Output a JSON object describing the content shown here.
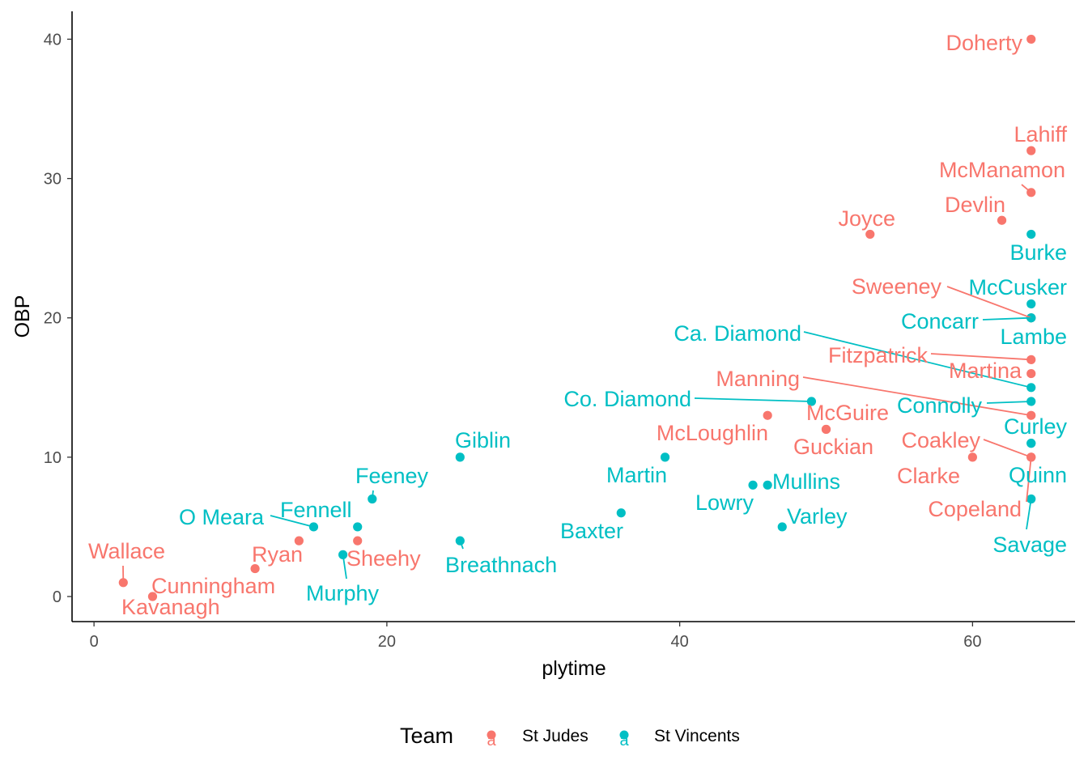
{
  "chart_data": {
    "type": "scatter",
    "xlabel": "plytime",
    "ylabel": "OBP",
    "xlim": [
      -1.5,
      67
    ],
    "ylim": [
      -1.8,
      42
    ],
    "x_ticks": [
      0,
      20,
      40,
      60
    ],
    "y_ticks": [
      0,
      10,
      20,
      30,
      40
    ],
    "grid": false,
    "legend": {
      "title": "Team",
      "placement": "bottom",
      "key_glyph": "a",
      "entries": [
        {
          "name": "St Judes",
          "color": "#F8766D"
        },
        {
          "name": "St Vincents",
          "color": "#00BFC4"
        }
      ]
    },
    "series": [
      {
        "name": "St Judes",
        "color": "#F8766D",
        "points": [
          {
            "label": "Doherty",
            "x": 64,
            "y": 40
          },
          {
            "label": "Lahiff",
            "x": 64,
            "y": 32
          },
          {
            "label": "McManamon",
            "x": 64,
            "y": 29
          },
          {
            "label": "Devlin",
            "x": 62,
            "y": 27
          },
          {
            "label": "Joyce",
            "x": 53,
            "y": 26
          },
          {
            "label": "Sweeney",
            "x": 64,
            "y": 20
          },
          {
            "label": "Fitzpatrick",
            "x": 64,
            "y": 17
          },
          {
            "label": "Martina",
            "x": 64,
            "y": 16
          },
          {
            "label": "Manning",
            "x": 64,
            "y": 13
          },
          {
            "label": "McGuire",
            "x": 50,
            "y": 12
          },
          {
            "label": "McLoughlin",
            "x": 46,
            "y": 13
          },
          {
            "label": "Guckian",
            "x": 50,
            "y": 12
          },
          {
            "label": "Coakley",
            "x": 64,
            "y": 10
          },
          {
            "label": "Clarke",
            "x": 60,
            "y": 10
          },
          {
            "label": "Copeland",
            "x": 64,
            "y": 10
          },
          {
            "label": "Wallace",
            "x": 2,
            "y": 1
          },
          {
            "label": "Ryan",
            "x": 14,
            "y": 4
          },
          {
            "label": "Sheehy",
            "x": 18,
            "y": 4
          },
          {
            "label": "Cunningham",
            "x": 11,
            "y": 2
          },
          {
            "label": "Kavanagh",
            "x": 4,
            "y": 0
          }
        ]
      },
      {
        "name": "St Vincents",
        "color": "#00BFC4",
        "points": [
          {
            "label": "Burke",
            "x": 64,
            "y": 26
          },
          {
            "label": "McCusker",
            "x": 64,
            "y": 21
          },
          {
            "label": "Concarr",
            "x": 64,
            "y": 20
          },
          {
            "label": "Lambe",
            "x": 64,
            "y": 20
          },
          {
            "label": "Ca. Diamond",
            "x": 64,
            "y": 15
          },
          {
            "label": "Co. Diamond",
            "x": 49,
            "y": 14
          },
          {
            "label": "Connolly",
            "x": 64,
            "y": 14
          },
          {
            "label": "Curley",
            "x": 64,
            "y": 11
          },
          {
            "label": "Quinn",
            "x": 64,
            "y": 11
          },
          {
            "label": "Savage",
            "x": 64,
            "y": 7
          },
          {
            "label": "Giblin",
            "x": 25,
            "y": 10
          },
          {
            "label": "Martin",
            "x": 39,
            "y": 10
          },
          {
            "label": "Mullins",
            "x": 46,
            "y": 8
          },
          {
            "label": "Lowry",
            "x": 45,
            "y": 8
          },
          {
            "label": "Varley",
            "x": 47,
            "y": 5
          },
          {
            "label": "Baxter",
            "x": 36,
            "y": 6
          },
          {
            "label": "Breathnach",
            "x": 25,
            "y": 4
          },
          {
            "label": "Feeney",
            "x": 19,
            "y": 7
          },
          {
            "label": "Fennell",
            "x": 18,
            "y": 5
          },
          {
            "label": "O Meara",
            "x": 15,
            "y": 5
          },
          {
            "label": "Murphy",
            "x": 17,
            "y": 3
          }
        ]
      }
    ]
  }
}
